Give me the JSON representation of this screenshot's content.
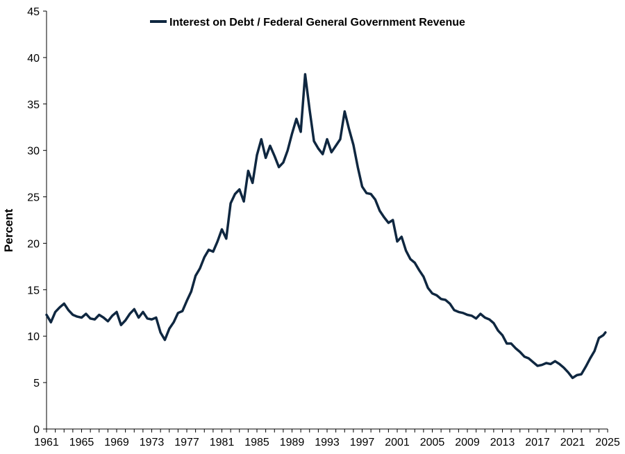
{
  "chart_data": {
    "type": "line",
    "title": "",
    "xlabel": "",
    "ylabel": "Percent",
    "xlim": [
      1961,
      2025
    ],
    "ylim": [
      0,
      45
    ],
    "x_ticks": [
      "1961",
      "1965",
      "1969",
      "1973",
      "1977",
      "1981",
      "1985",
      "1989",
      "1993",
      "1997",
      "2001",
      "2005",
      "2009",
      "2013",
      "2017",
      "2021",
      "2025"
    ],
    "y_ticks": [
      "0",
      "5",
      "10",
      "15",
      "20",
      "25",
      "30",
      "35",
      "40",
      "45"
    ],
    "grid": false,
    "legend_position": "top-center",
    "series": [
      {
        "name": "Interest on Debt  / Federal General Government Revenue",
        "color": "#0f2740",
        "points": [
          [
            1961.0,
            12.3
          ],
          [
            1961.5,
            11.5
          ],
          [
            1962.0,
            12.6
          ],
          [
            1962.5,
            13.1
          ],
          [
            1963.0,
            13.5
          ],
          [
            1963.5,
            12.8
          ],
          [
            1964.0,
            12.3
          ],
          [
            1964.5,
            12.1
          ],
          [
            1965.0,
            12.0
          ],
          [
            1965.5,
            12.4
          ],
          [
            1966.0,
            11.9
          ],
          [
            1966.5,
            11.8
          ],
          [
            1967.0,
            12.3
          ],
          [
            1967.5,
            12.0
          ],
          [
            1968.0,
            11.6
          ],
          [
            1968.5,
            12.2
          ],
          [
            1969.0,
            12.6
          ],
          [
            1969.5,
            11.2
          ],
          [
            1970.0,
            11.7
          ],
          [
            1970.5,
            12.4
          ],
          [
            1971.0,
            12.9
          ],
          [
            1971.5,
            12.0
          ],
          [
            1972.0,
            12.6
          ],
          [
            1972.5,
            11.9
          ],
          [
            1973.0,
            11.8
          ],
          [
            1973.5,
            12.0
          ],
          [
            1974.0,
            10.4
          ],
          [
            1974.5,
            9.6
          ],
          [
            1975.0,
            10.8
          ],
          [
            1975.5,
            11.5
          ],
          [
            1976.0,
            12.5
          ],
          [
            1976.5,
            12.7
          ],
          [
            1977.0,
            13.8
          ],
          [
            1977.5,
            14.8
          ],
          [
            1978.0,
            16.5
          ],
          [
            1978.5,
            17.3
          ],
          [
            1979.0,
            18.5
          ],
          [
            1979.5,
            19.3
          ],
          [
            1980.0,
            19.1
          ],
          [
            1980.5,
            20.2
          ],
          [
            1981.0,
            21.5
          ],
          [
            1981.5,
            20.5
          ],
          [
            1982.0,
            24.3
          ],
          [
            1982.5,
            25.3
          ],
          [
            1983.0,
            25.8
          ],
          [
            1983.5,
            24.5
          ],
          [
            1984.0,
            27.8
          ],
          [
            1984.5,
            26.5
          ],
          [
            1985.0,
            29.5
          ],
          [
            1985.5,
            31.2
          ],
          [
            1986.0,
            29.2
          ],
          [
            1986.5,
            30.5
          ],
          [
            1987.0,
            29.4
          ],
          [
            1987.5,
            28.2
          ],
          [
            1988.0,
            28.7
          ],
          [
            1988.5,
            30.0
          ],
          [
            1989.0,
            31.8
          ],
          [
            1989.5,
            33.4
          ],
          [
            1990.0,
            32.0
          ],
          [
            1990.5,
            38.2
          ],
          [
            1991.0,
            34.4
          ],
          [
            1991.5,
            31.0
          ],
          [
            1992.0,
            30.2
          ],
          [
            1992.5,
            29.6
          ],
          [
            1993.0,
            31.2
          ],
          [
            1993.5,
            29.8
          ],
          [
            1994.0,
            30.5
          ],
          [
            1994.5,
            31.2
          ],
          [
            1995.0,
            34.2
          ],
          [
            1995.5,
            32.3
          ],
          [
            1996.0,
            30.6
          ],
          [
            1996.5,
            28.2
          ],
          [
            1997.0,
            26.1
          ],
          [
            1997.5,
            25.4
          ],
          [
            1998.0,
            25.3
          ],
          [
            1998.5,
            24.7
          ],
          [
            1999.0,
            23.5
          ],
          [
            1999.5,
            22.8
          ],
          [
            2000.0,
            22.2
          ],
          [
            2000.5,
            22.5
          ],
          [
            2001.0,
            20.2
          ],
          [
            2001.5,
            20.7
          ],
          [
            2002.0,
            19.2
          ],
          [
            2002.5,
            18.3
          ],
          [
            2003.0,
            17.9
          ],
          [
            2003.5,
            17.1
          ],
          [
            2004.0,
            16.4
          ],
          [
            2004.5,
            15.2
          ],
          [
            2005.0,
            14.6
          ],
          [
            2005.5,
            14.4
          ],
          [
            2006.0,
            14.0
          ],
          [
            2006.5,
            13.9
          ],
          [
            2007.0,
            13.5
          ],
          [
            2007.5,
            12.8
          ],
          [
            2008.0,
            12.6
          ],
          [
            2008.5,
            12.5
          ],
          [
            2009.0,
            12.3
          ],
          [
            2009.5,
            12.2
          ],
          [
            2010.0,
            11.9
          ],
          [
            2010.5,
            12.4
          ],
          [
            2011.0,
            12.0
          ],
          [
            2011.5,
            11.8
          ],
          [
            2012.0,
            11.4
          ],
          [
            2012.5,
            10.6
          ],
          [
            2013.0,
            10.1
          ],
          [
            2013.5,
            9.2
          ],
          [
            2014.0,
            9.2
          ],
          [
            2014.5,
            8.7
          ],
          [
            2015.0,
            8.3
          ],
          [
            2015.5,
            7.8
          ],
          [
            2016.0,
            7.6
          ],
          [
            2016.5,
            7.2
          ],
          [
            2017.0,
            6.8
          ],
          [
            2017.5,
            6.9
          ],
          [
            2018.0,
            7.1
          ],
          [
            2018.5,
            7.0
          ],
          [
            2019.0,
            7.3
          ],
          [
            2019.5,
            7.0
          ],
          [
            2020.0,
            6.6
          ],
          [
            2020.5,
            6.1
          ],
          [
            2021.0,
            5.5
          ],
          [
            2021.5,
            5.8
          ],
          [
            2022.0,
            5.9
          ],
          [
            2022.5,
            6.7
          ],
          [
            2023.0,
            7.6
          ],
          [
            2023.5,
            8.4
          ],
          [
            2024.0,
            9.8
          ],
          [
            2024.5,
            10.1
          ],
          [
            2024.75,
            10.4
          ]
        ]
      }
    ]
  }
}
